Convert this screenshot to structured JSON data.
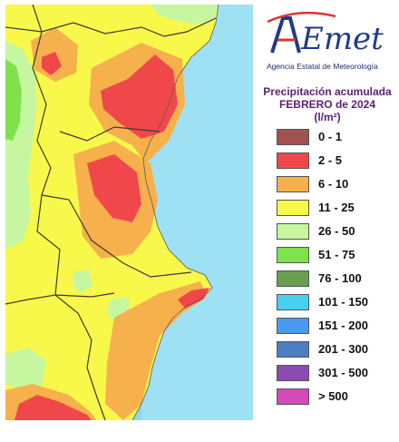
{
  "logo": {
    "wordmark": "AEmet",
    "agency": "Agencia Estatal de Meteorología"
  },
  "legend": {
    "title_line1": "Precipitación acumulada",
    "title_line2": "FEBRERO de 2024",
    "unit": "(l/m²)",
    "classes": [
      {
        "label": "0 - 1",
        "color": "#a35050"
      },
      {
        "label": "2 - 5",
        "color": "#f0484a"
      },
      {
        "label": "6 - 10",
        "color": "#f6b04c"
      },
      {
        "label": "11 - 25",
        "color": "#f8f84a"
      },
      {
        "label": "26 - 50",
        "color": "#c6f6a0"
      },
      {
        "label": "51 - 75",
        "color": "#7ee24c"
      },
      {
        "label": "76 - 100",
        "color": "#6a9e50"
      },
      {
        "label": "101 - 150",
        "color": "#48d0f0"
      },
      {
        "label": "151 - 200",
        "color": "#4a9af2"
      },
      {
        "label": "201 - 300",
        "color": "#4a7ec4"
      },
      {
        "label": "301 - 500",
        "color": "#8a4cae"
      },
      {
        "label": "> 500",
        "color": "#d44ab8"
      }
    ]
  },
  "map": {
    "sea_color": "#8ed8f0",
    "land_base_color": "#f8f84a",
    "border_color": "#3a3a3a"
  }
}
